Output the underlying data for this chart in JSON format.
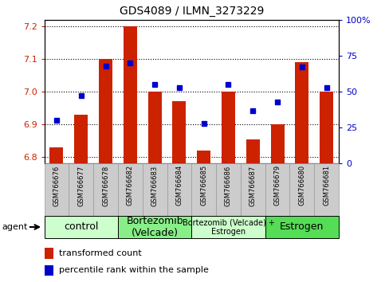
{
  "title": "GDS4089 / ILMN_3273229",
  "samples": [
    "GSM766676",
    "GSM766677",
    "GSM766678",
    "GSM766682",
    "GSM766683",
    "GSM766684",
    "GSM766685",
    "GSM766686",
    "GSM766687",
    "GSM766679",
    "GSM766680",
    "GSM766681"
  ],
  "red_values": [
    6.83,
    6.93,
    7.1,
    7.2,
    7.0,
    6.97,
    6.82,
    7.0,
    6.855,
    6.9,
    7.09,
    7.0
  ],
  "blue_values": [
    30,
    47,
    68,
    70,
    55,
    53,
    28,
    55,
    37,
    43,
    67,
    53
  ],
  "ylim_left": [
    6.78,
    7.22
  ],
  "ylim_right": [
    0,
    100
  ],
  "yticks_left": [
    6.8,
    6.9,
    7.0,
    7.1,
    7.2
  ],
  "yticks_right": [
    0,
    25,
    50,
    75,
    100
  ],
  "ytick_labels_right": [
    "0",
    "25",
    "50",
    "75",
    "100%"
  ],
  "groups": [
    {
      "label": "control",
      "start": 0,
      "end": 3,
      "color": "#ccffcc",
      "fontsize": 9
    },
    {
      "label": "Bortezomib\n(Velcade)",
      "start": 3,
      "end": 6,
      "color": "#88ee88",
      "fontsize": 9
    },
    {
      "label": "Bortezomib (Velcade) +\nEstrogen",
      "start": 6,
      "end": 9,
      "color": "#ccffcc",
      "fontsize": 7
    },
    {
      "label": "Estrogen",
      "start": 9,
      "end": 12,
      "color": "#55dd55",
      "fontsize": 9
    }
  ],
  "bar_color": "#cc2200",
  "dot_color": "#0000cc",
  "bar_width": 0.55,
  "legend_red": "transformed count",
  "legend_blue": "percentile rank within the sample",
  "agent_label": "agent"
}
